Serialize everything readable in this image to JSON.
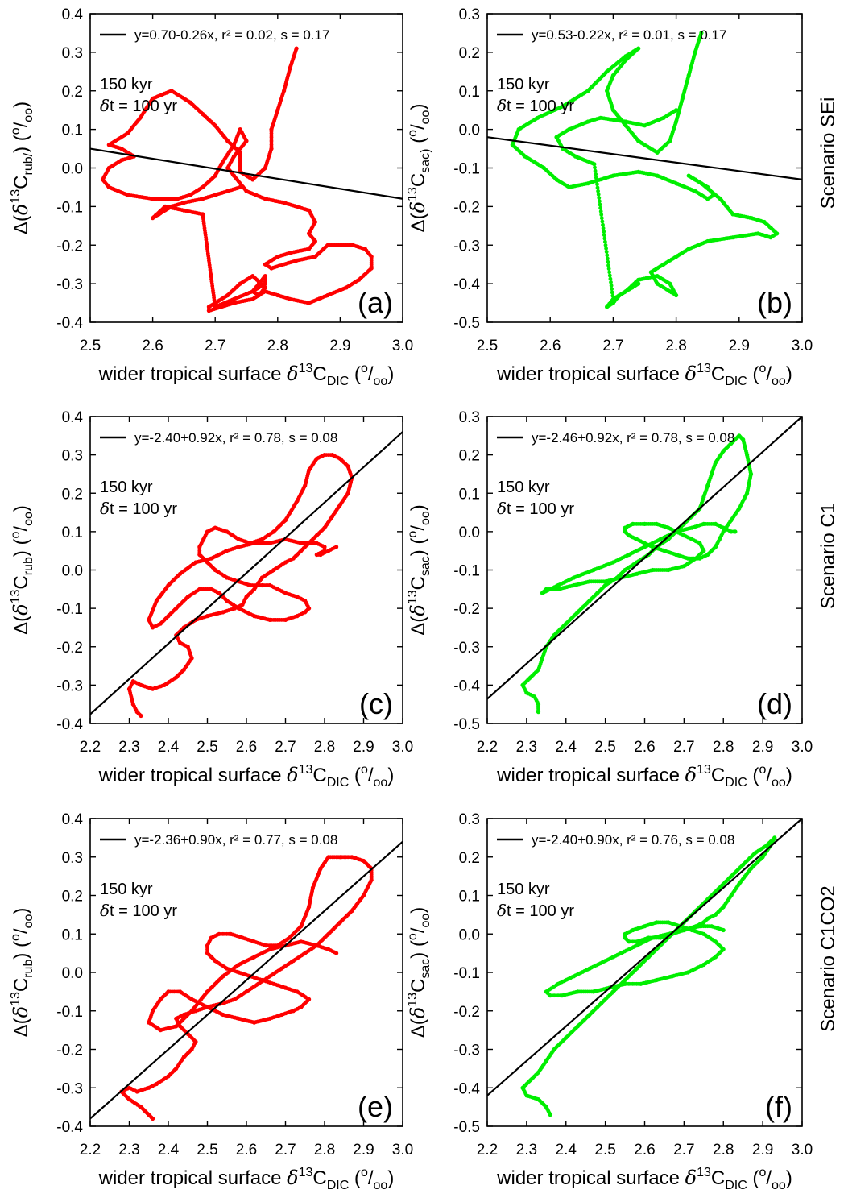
{
  "figure": {
    "x_axis_label_main": "wider tropical surface ",
    "x_axis_label_sym": "δ",
    "x_axis_label_sup": "13",
    "x_axis_label_c": "C",
    "x_axis_label_sub": "DIC",
    "x_axis_label_unit_open": " (",
    "x_axis_label_unit_o": "o",
    "x_axis_label_unit_slash": "/",
    "x_axis_label_unit_oo": "oo",
    "x_axis_label_unit_close": ")",
    "period_label": "150 kyr",
    "step_label_sym": "δ",
    "step_label_rest": "t = 100 yr",
    "scenarios": [
      "Scenario SEi",
      "Scenario C1",
      "Scenario C1CO2"
    ],
    "colors": {
      "rub": "#ff0000",
      "sac": "#00ee00",
      "fit": "#000000"
    }
  },
  "chart_data": [
    {
      "type": "scatter",
      "panel": "(a)",
      "species": "rub",
      "ylabel_sub": "rub/",
      "fit_label": "y=0.70-0.26x, r² = 0.02, s = 0.17",
      "fit": {
        "intercept": 0.7,
        "slope": -0.26
      },
      "xlim": [
        2.5,
        3.0
      ],
      "ylim": [
        -0.4,
        0.4
      ],
      "xticks": [
        "2.5",
        "2.6",
        "2.7",
        "2.8",
        "2.9",
        "3.0"
      ],
      "yticks": [
        "-0.4",
        "-0.3",
        "-0.2",
        "-0.1",
        "0.0",
        "0.1",
        "0.2",
        "0.3",
        "0.4"
      ],
      "x": [
        2.83,
        2.82,
        2.81,
        2.8,
        2.79,
        2.79,
        2.78,
        2.76,
        2.74,
        2.74,
        2.72,
        2.7,
        2.68,
        2.66,
        2.63,
        2.6,
        2.58,
        2.56,
        2.53,
        2.55,
        2.57,
        2.55,
        2.53,
        2.52,
        2.53,
        2.56,
        2.6,
        2.64,
        2.66,
        2.68,
        2.7,
        2.71,
        2.73,
        2.74,
        2.75,
        2.73,
        2.72,
        2.73,
        2.75,
        2.78,
        2.81,
        2.85,
        2.86,
        2.85,
        2.86,
        2.85,
        2.82,
        2.8,
        2.78,
        2.79,
        2.83,
        2.86,
        2.88,
        2.92,
        2.94,
        2.95,
        2.95,
        2.93,
        2.91,
        2.88,
        2.85,
        2.82,
        2.8,
        2.78,
        2.76,
        2.73,
        2.71,
        2.69,
        2.69,
        2.7,
        2.72,
        2.74,
        2.76,
        2.78,
        2.77,
        2.76,
        2.77,
        2.78,
        2.78,
        2.76,
        2.73,
        2.7,
        2.68,
        2.65,
        2.62,
        2.6,
        2.61,
        2.63,
        2.65,
        2.68,
        2.7,
        2.72,
        2.74
      ],
      "y": [
        0.31,
        0.26,
        0.2,
        0.15,
        0.1,
        0.05,
        0.0,
        -0.03,
        -0.01,
        0.04,
        0.07,
        0.11,
        0.14,
        0.17,
        0.2,
        0.18,
        0.13,
        0.09,
        0.06,
        0.05,
        0.03,
        0.02,
        0.0,
        -0.03,
        -0.05,
        -0.07,
        -0.08,
        -0.08,
        -0.07,
        -0.05,
        -0.02,
        0.01,
        0.06,
        0.1,
        0.07,
        0.03,
        0.0,
        -0.02,
        -0.06,
        -0.08,
        -0.09,
        -0.11,
        -0.14,
        -0.17,
        -0.19,
        -0.21,
        -0.22,
        -0.23,
        -0.25,
        -0.26,
        -0.24,
        -0.23,
        -0.2,
        -0.2,
        -0.21,
        -0.23,
        -0.26,
        -0.29,
        -0.31,
        -0.33,
        -0.35,
        -0.34,
        -0.33,
        -0.32,
        -0.34,
        -0.35,
        -0.36,
        -0.37,
        -0.36,
        -0.35,
        -0.33,
        -0.3,
        -0.28,
        -0.31,
        -0.33,
        -0.32,
        -0.3,
        -0.28,
        -0.3,
        -0.32,
        -0.34,
        -0.36,
        -0.12,
        -0.11,
        -0.1,
        -0.13,
        -0.12,
        -0.1,
        -0.09,
        -0.08,
        -0.07,
        -0.06,
        -0.05
      ]
    },
    {
      "type": "scatter",
      "panel": "(b)",
      "species": "sac",
      "ylabel_sub": "sac)",
      "fit_label": "y=0.53-0.22x, r² = 0.01, s = 0.17",
      "fit": {
        "intercept": 0.53,
        "slope": -0.22
      },
      "xlim": [
        2.5,
        3.0
      ],
      "ylim": [
        -0.5,
        0.3
      ],
      "xticks": [
        "2.5",
        "2.6",
        "2.7",
        "2.8",
        "2.9",
        "3.0"
      ],
      "yticks": [
        "-0.5",
        "-0.4",
        "-0.3",
        "-0.2",
        "-0.1",
        "0.0",
        "0.1",
        "0.2",
        "0.3"
      ],
      "x": [
        2.84,
        2.83,
        2.82,
        2.81,
        2.8,
        2.79,
        2.77,
        2.74,
        2.72,
        2.7,
        2.69,
        2.7,
        2.72,
        2.74,
        2.72,
        2.69,
        2.66,
        2.62,
        2.58,
        2.55,
        2.54,
        2.56,
        2.59,
        2.61,
        2.63,
        2.66,
        2.7,
        2.74,
        2.77,
        2.8,
        2.83,
        2.85,
        2.86,
        2.85,
        2.83,
        2.82,
        2.84,
        2.87,
        2.89,
        2.92,
        2.94,
        2.96,
        2.95,
        2.93,
        2.89,
        2.85,
        2.82,
        2.8,
        2.78,
        2.76,
        2.77,
        2.79,
        2.8,
        2.79,
        2.77,
        2.74,
        2.72,
        2.7,
        2.69,
        2.7,
        2.71,
        2.73,
        2.74,
        2.72,
        2.7,
        2.67,
        2.64,
        2.62,
        2.61,
        2.63,
        2.66,
        2.68,
        2.72,
        2.75,
        2.78,
        2.8
      ],
      "y": [
        0.25,
        0.2,
        0.14,
        0.08,
        0.02,
        -0.03,
        -0.06,
        -0.03,
        0.01,
        0.05,
        0.1,
        0.14,
        0.18,
        0.21,
        0.19,
        0.15,
        0.1,
        0.06,
        0.03,
        0.0,
        -0.04,
        -0.07,
        -0.1,
        -0.13,
        -0.15,
        -0.14,
        -0.12,
        -0.11,
        -0.12,
        -0.14,
        -0.16,
        -0.18,
        -0.17,
        -0.15,
        -0.13,
        -0.12,
        -0.14,
        -0.18,
        -0.22,
        -0.23,
        -0.24,
        -0.27,
        -0.28,
        -0.27,
        -0.28,
        -0.29,
        -0.31,
        -0.33,
        -0.35,
        -0.37,
        -0.4,
        -0.42,
        -0.43,
        -0.4,
        -0.38,
        -0.39,
        -0.42,
        -0.44,
        -0.46,
        -0.45,
        -0.43,
        -0.41,
        -0.4,
        -0.42,
        -0.44,
        -0.09,
        -0.07,
        -0.05,
        -0.02,
        0.0,
        0.02,
        0.03,
        0.02,
        0.01,
        0.03,
        0.05
      ]
    },
    {
      "type": "scatter",
      "panel": "(c)",
      "species": "rub",
      "ylabel_sub": "rub",
      "fit_label": "y=-2.40+0.92x, r² = 0.78, s = 0.08",
      "fit": {
        "intercept": -2.4,
        "slope": 0.92
      },
      "xlim": [
        2.2,
        3.0
      ],
      "ylim": [
        -0.4,
        0.4
      ],
      "xticks": [
        "2.2",
        "2.3",
        "2.4",
        "2.5",
        "2.6",
        "2.7",
        "2.8",
        "2.9",
        "3.0"
      ],
      "yticks": [
        "-0.4",
        "-0.3",
        "-0.2",
        "-0.1",
        "0.0",
        "0.1",
        "0.2",
        "0.3",
        "0.4"
      ],
      "x": [
        2.33,
        2.32,
        2.31,
        2.3,
        2.31,
        2.33,
        2.36,
        2.39,
        2.42,
        2.44,
        2.46,
        2.45,
        2.43,
        2.42,
        2.44,
        2.47,
        2.5,
        2.54,
        2.57,
        2.59,
        2.6,
        2.62,
        2.64,
        2.67,
        2.7,
        2.72,
        2.74,
        2.76,
        2.78,
        2.8,
        2.82,
        2.84,
        2.86,
        2.87,
        2.86,
        2.84,
        2.82,
        2.8,
        2.78,
        2.76,
        2.75,
        2.73,
        2.7,
        2.67,
        2.64,
        2.61,
        2.58,
        2.55,
        2.52,
        2.5,
        2.49,
        2.48,
        2.48,
        2.5,
        2.52,
        2.55,
        2.58,
        2.61,
        2.64,
        2.66,
        2.68,
        2.7,
        2.73,
        2.75,
        2.76,
        2.75,
        2.73,
        2.7,
        2.66,
        2.62,
        2.58,
        2.55,
        2.53,
        2.51,
        2.48,
        2.45,
        2.42,
        2.4,
        2.38,
        2.36,
        2.35,
        2.37,
        2.4,
        2.43,
        2.47,
        2.51,
        2.55,
        2.58,
        2.62,
        2.66,
        2.7,
        2.74,
        2.78,
        2.8,
        2.8,
        2.78,
        2.79,
        2.81,
        2.83
      ],
      "y": [
        -0.38,
        -0.37,
        -0.35,
        -0.31,
        -0.29,
        -0.3,
        -0.31,
        -0.3,
        -0.28,
        -0.26,
        -0.23,
        -0.2,
        -0.19,
        -0.17,
        -0.15,
        -0.13,
        -0.12,
        -0.11,
        -0.1,
        -0.09,
        -0.07,
        -0.05,
        -0.02,
        0.0,
        0.02,
        0.03,
        0.05,
        0.07,
        0.09,
        0.11,
        0.14,
        0.17,
        0.2,
        0.24,
        0.27,
        0.29,
        0.3,
        0.3,
        0.29,
        0.26,
        0.22,
        0.18,
        0.13,
        0.1,
        0.08,
        0.07,
        0.08,
        0.1,
        0.11,
        0.1,
        0.08,
        0.06,
        0.04,
        0.02,
        0.0,
        -0.02,
        -0.03,
        -0.04,
        -0.04,
        -0.04,
        -0.05,
        -0.06,
        -0.07,
        -0.08,
        -0.1,
        -0.11,
        -0.12,
        -0.13,
        -0.13,
        -0.12,
        -0.1,
        -0.08,
        -0.06,
        -0.05,
        -0.05,
        -0.07,
        -0.1,
        -0.12,
        -0.14,
        -0.15,
        -0.13,
        -0.08,
        -0.04,
        -0.01,
        0.02,
        0.03,
        0.05,
        0.06,
        0.07,
        0.07,
        0.08,
        0.07,
        0.07,
        0.06,
        0.05,
        0.04,
        0.04,
        0.05,
        0.06
      ]
    },
    {
      "type": "scatter",
      "panel": "(d)",
      "species": "sac",
      "ylabel_sub": "sac",
      "fit_label": "y=-2.46+0.92x, r² = 0.78, s = 0.08",
      "fit": {
        "intercept": -2.46,
        "slope": 0.92
      },
      "xlim": [
        2.2,
        3.0
      ],
      "ylim": [
        -0.5,
        0.3
      ],
      "xticks": [
        "2.2",
        "2.3",
        "2.4",
        "2.5",
        "2.6",
        "2.7",
        "2.8",
        "2.9",
        "3.0"
      ],
      "yticks": [
        "-0.5",
        "-0.4",
        "-0.3",
        "-0.2",
        "-0.1",
        "0.0",
        "0.1",
        "0.2",
        "0.3"
      ],
      "x": [
        2.33,
        2.33,
        2.32,
        2.3,
        2.29,
        2.31,
        2.33,
        2.34,
        2.35,
        2.37,
        2.4,
        2.43,
        2.46,
        2.48,
        2.5,
        2.53,
        2.55,
        2.58,
        2.61,
        2.63,
        2.66,
        2.68,
        2.7,
        2.72,
        2.74,
        2.75,
        2.76,
        2.77,
        2.78,
        2.8,
        2.82,
        2.84,
        2.85,
        2.86,
        2.87,
        2.86,
        2.84,
        2.82,
        2.8,
        2.79,
        2.78,
        2.76,
        2.74,
        2.71,
        2.68,
        2.65,
        2.62,
        2.6,
        2.58,
        2.56,
        2.55,
        2.55,
        2.57,
        2.6,
        2.63,
        2.66,
        2.68,
        2.7,
        2.72,
        2.74,
        2.75,
        2.73,
        2.7,
        2.66,
        2.62,
        2.58,
        2.54,
        2.5,
        2.46,
        2.42,
        2.38,
        2.35,
        2.34,
        2.38,
        2.42,
        2.47,
        2.52,
        2.56,
        2.6,
        2.64,
        2.68,
        2.72,
        2.75,
        2.78,
        2.8,
        2.82,
        2.83
      ],
      "y": [
        -0.47,
        -0.45,
        -0.43,
        -0.42,
        -0.4,
        -0.38,
        -0.36,
        -0.33,
        -0.3,
        -0.27,
        -0.24,
        -0.21,
        -0.18,
        -0.16,
        -0.14,
        -0.12,
        -0.1,
        -0.08,
        -0.06,
        -0.04,
        -0.02,
        0.0,
        0.02,
        0.04,
        0.06,
        0.09,
        0.12,
        0.15,
        0.18,
        0.21,
        0.23,
        0.25,
        0.24,
        0.2,
        0.15,
        0.1,
        0.06,
        0.03,
        0.0,
        -0.02,
        -0.04,
        -0.06,
        -0.07,
        -0.07,
        -0.06,
        -0.05,
        -0.04,
        -0.03,
        -0.02,
        -0.01,
        0.0,
        0.01,
        0.02,
        0.02,
        0.02,
        0.01,
        0.0,
        -0.01,
        -0.02,
        -0.03,
        -0.05,
        -0.07,
        -0.09,
        -0.1,
        -0.1,
        -0.11,
        -0.12,
        -0.13,
        -0.13,
        -0.14,
        -0.15,
        -0.15,
        -0.16,
        -0.14,
        -0.12,
        -0.1,
        -0.08,
        -0.06,
        -0.04,
        -0.02,
        0.0,
        0.01,
        0.02,
        0.02,
        0.01,
        0.0,
        0.0
      ]
    },
    {
      "type": "scatter",
      "panel": "(e)",
      "species": "rub",
      "ylabel_sub": "rub",
      "fit_label": "y=-2.36+0.90x, r² = 0.77, s = 0.08",
      "fit": {
        "intercept": -2.36,
        "slope": 0.9
      },
      "xlim": [
        2.2,
        3.0
      ],
      "ylim": [
        -0.4,
        0.4
      ],
      "xticks": [
        "2.2",
        "2.3",
        "2.4",
        "2.5",
        "2.6",
        "2.7",
        "2.8",
        "2.9",
        "3.0"
      ],
      "yticks": [
        "-0.4",
        "-0.3",
        "-0.2",
        "-0.1",
        "0.0",
        "0.1",
        "0.2",
        "0.3",
        "0.4"
      ],
      "x": [
        2.36,
        2.35,
        2.33,
        2.3,
        2.28,
        2.3,
        2.32,
        2.35,
        2.37,
        2.4,
        2.42,
        2.44,
        2.46,
        2.47,
        2.45,
        2.43,
        2.42,
        2.44,
        2.47,
        2.5,
        2.54,
        2.57,
        2.6,
        2.63,
        2.66,
        2.69,
        2.72,
        2.75,
        2.78,
        2.81,
        2.84,
        2.87,
        2.9,
        2.92,
        2.92,
        2.9,
        2.87,
        2.84,
        2.81,
        2.79,
        2.77,
        2.76,
        2.74,
        2.71,
        2.68,
        2.65,
        2.62,
        2.59,
        2.56,
        2.53,
        2.51,
        2.5,
        2.5,
        2.52,
        2.55,
        2.58,
        2.61,
        2.64,
        2.67,
        2.7,
        2.73,
        2.76,
        2.74,
        2.72,
        2.69,
        2.66,
        2.62,
        2.58,
        2.54,
        2.5,
        2.46,
        2.43,
        2.4,
        2.38,
        2.36,
        2.35,
        2.38,
        2.42,
        2.46,
        2.5,
        2.54,
        2.58,
        2.62,
        2.66,
        2.7,
        2.74,
        2.78,
        2.81,
        2.83
      ],
      "y": [
        -0.38,
        -0.37,
        -0.35,
        -0.33,
        -0.31,
        -0.3,
        -0.31,
        -0.3,
        -0.29,
        -0.27,
        -0.25,
        -0.22,
        -0.2,
        -0.18,
        -0.16,
        -0.14,
        -0.12,
        -0.11,
        -0.1,
        -0.09,
        -0.08,
        -0.07,
        -0.05,
        -0.03,
        -0.01,
        0.01,
        0.03,
        0.05,
        0.07,
        0.1,
        0.13,
        0.16,
        0.2,
        0.24,
        0.27,
        0.29,
        0.3,
        0.3,
        0.3,
        0.27,
        0.22,
        0.17,
        0.12,
        0.09,
        0.07,
        0.07,
        0.08,
        0.09,
        0.1,
        0.1,
        0.09,
        0.07,
        0.05,
        0.03,
        0.01,
        0.0,
        -0.01,
        -0.02,
        -0.03,
        -0.04,
        -0.05,
        -0.07,
        -0.09,
        -0.1,
        -0.11,
        -0.12,
        -0.13,
        -0.12,
        -0.11,
        -0.09,
        -0.07,
        -0.05,
        -0.05,
        -0.07,
        -0.1,
        -0.13,
        -0.15,
        -0.14,
        -0.1,
        -0.05,
        -0.01,
        0.02,
        0.04,
        0.06,
        0.07,
        0.08,
        0.07,
        0.06,
        0.05
      ]
    },
    {
      "type": "scatter",
      "panel": "(f)",
      "species": "sac",
      "ylabel_sub": "sac",
      "fit_label": "y=-2.40+0.90x, r² = 0.76, s = 0.08",
      "fit": {
        "intercept": -2.4,
        "slope": 0.9
      },
      "xlim": [
        2.2,
        3.0
      ],
      "ylim": [
        -0.5,
        0.3
      ],
      "xticks": [
        "2.2",
        "2.3",
        "2.4",
        "2.5",
        "2.6",
        "2.7",
        "2.8",
        "2.9",
        "3.0"
      ],
      "yticks": [
        "-0.5",
        "-0.4",
        "-0.3",
        "-0.2",
        "-0.1",
        "0.0",
        "0.1",
        "0.2",
        "0.3"
      ],
      "x": [
        2.36,
        2.35,
        2.33,
        2.3,
        2.29,
        2.31,
        2.33,
        2.35,
        2.37,
        2.4,
        2.43,
        2.46,
        2.49,
        2.52,
        2.55,
        2.58,
        2.61,
        2.64,
        2.67,
        2.7,
        2.73,
        2.76,
        2.79,
        2.82,
        2.85,
        2.88,
        2.91,
        2.93,
        2.92,
        2.9,
        2.87,
        2.84,
        2.82,
        2.8,
        2.78,
        2.76,
        2.75,
        2.73,
        2.7,
        2.67,
        2.64,
        2.61,
        2.58,
        2.56,
        2.55,
        2.55,
        2.57,
        2.6,
        2.63,
        2.66,
        2.69,
        2.72,
        2.75,
        2.78,
        2.8,
        2.78,
        2.75,
        2.71,
        2.67,
        2.63,
        2.59,
        2.55,
        2.51,
        2.47,
        2.43,
        2.39,
        2.36,
        2.35,
        2.38,
        2.42,
        2.46,
        2.5,
        2.54,
        2.58,
        2.62,
        2.66,
        2.7,
        2.74,
        2.77,
        2.8
      ],
      "y": [
        -0.47,
        -0.45,
        -0.43,
        -0.42,
        -0.4,
        -0.38,
        -0.36,
        -0.33,
        -0.3,
        -0.27,
        -0.24,
        -0.21,
        -0.18,
        -0.15,
        -0.12,
        -0.09,
        -0.06,
        -0.03,
        0.0,
        0.03,
        0.06,
        0.09,
        0.12,
        0.15,
        0.18,
        0.21,
        0.23,
        0.25,
        0.23,
        0.2,
        0.17,
        0.13,
        0.1,
        0.07,
        0.05,
        0.04,
        0.03,
        0.02,
        0.01,
        0.0,
        -0.01,
        -0.01,
        -0.02,
        -0.02,
        -0.01,
        0.0,
        0.01,
        0.02,
        0.03,
        0.03,
        0.02,
        0.01,
        0.0,
        -0.02,
        -0.04,
        -0.06,
        -0.08,
        -0.1,
        -0.11,
        -0.12,
        -0.13,
        -0.13,
        -0.14,
        -0.15,
        -0.15,
        -0.16,
        -0.16,
        -0.15,
        -0.13,
        -0.11,
        -0.09,
        -0.07,
        -0.05,
        -0.03,
        -0.01,
        0.0,
        0.01,
        0.02,
        0.02,
        0.01
      ]
    }
  ]
}
